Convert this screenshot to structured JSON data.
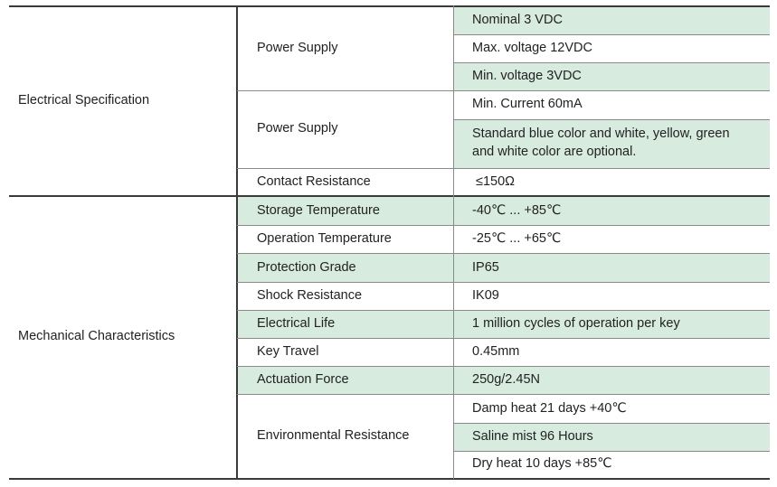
{
  "table": {
    "sections": [
      {
        "name": "Electrical Specification",
        "groups": [
          {
            "label": "Power Supply",
            "values": [
              "Nominal 3 VDC",
              "Max. voltage 12VDC",
              "Min. voltage 3VDC"
            ]
          },
          {
            "label": "Power Supply",
            "values": [
              "Min. Current 60mA",
              "Standard blue color and white, yellow, green and white color are optional."
            ]
          },
          {
            "label": "Contact Resistance",
            "values": [
              "≤150Ω"
            ]
          }
        ]
      },
      {
        "name": "Mechanical Characteristics",
        "groups": [
          {
            "label": "Storage Temperature",
            "values": [
              "-40℃ ... +85℃"
            ]
          },
          {
            "label": "Operation Temperature",
            "values": [
              "-25℃ ... +65℃"
            ]
          },
          {
            "label": "Protection Grade",
            "values": [
              "IP65"
            ]
          },
          {
            "label": "Shock Resistance",
            "values": [
              "IK09"
            ]
          },
          {
            "label": "Electrical Life",
            "values": [
              "1 million cycles of operation per key"
            ]
          },
          {
            "label": "Key Travel",
            "values": [
              "0.45mm"
            ]
          },
          {
            "label": "Actuation Force",
            "values": [
              "250g/2.45N"
            ]
          },
          {
            "label": "Environmental Resistance",
            "values": [
              "Damp heat 21 days +40℃",
              "Saline mist 96 Hours",
              "Dry heat 10 days +85℃"
            ]
          }
        ]
      }
    ],
    "colors": {
      "highlight": "#d7ebdf",
      "text": "#222222",
      "rule": "#8a8a8a"
    }
  }
}
